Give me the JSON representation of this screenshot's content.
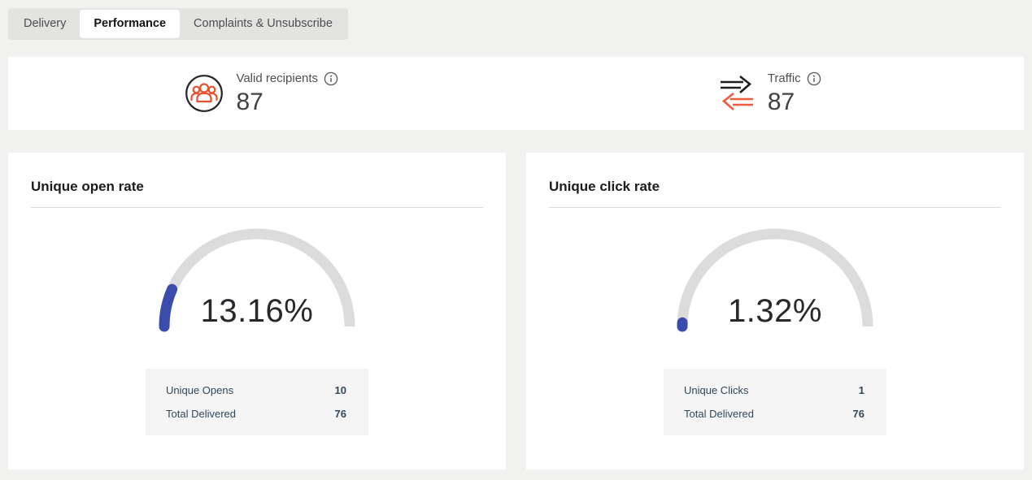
{
  "tabs": {
    "items": [
      {
        "label": "Delivery",
        "active": false
      },
      {
        "label": "Performance",
        "active": true
      },
      {
        "label": "Complaints & Unsubscribe",
        "active": false
      }
    ]
  },
  "stats": {
    "valid_recipients": {
      "label": "Valid recipients",
      "value": "87",
      "icon": "recipients-group-icon",
      "has_info_tooltip": true
    },
    "traffic": {
      "label": "Traffic",
      "value": "87",
      "icon": "traffic-arrows-icon",
      "has_info_tooltip": true
    }
  },
  "chart_data": [
    {
      "type": "gauge",
      "title": "Unique open rate",
      "value_pct": 13.16,
      "display": "13.16%",
      "range": [
        0,
        100
      ],
      "rows": [
        {
          "label": "Unique Opens",
          "value": 10
        },
        {
          "label": "Total Delivered",
          "value": 76
        }
      ]
    },
    {
      "type": "gauge",
      "title": "Unique click rate",
      "value_pct": 1.32,
      "display": "1.32%",
      "range": [
        0,
        100
      ],
      "rows": [
        {
          "label": "Unique Clicks",
          "value": 1
        },
        {
          "label": "Total Delivered",
          "value": 76
        }
      ]
    }
  ],
  "colors": {
    "page_bg": "#f1f1ef",
    "tabbar_bg": "#e3e3e1",
    "table_bg": "#f5f5f5",
    "table_text": "#33475b",
    "gauge_fill": "#3b4dac",
    "gauge_track": "#dcdcdc",
    "icon_orange": "#e8512f",
    "arrow_orange": "#f25c3c",
    "arrow_black": "#1f1f23"
  }
}
